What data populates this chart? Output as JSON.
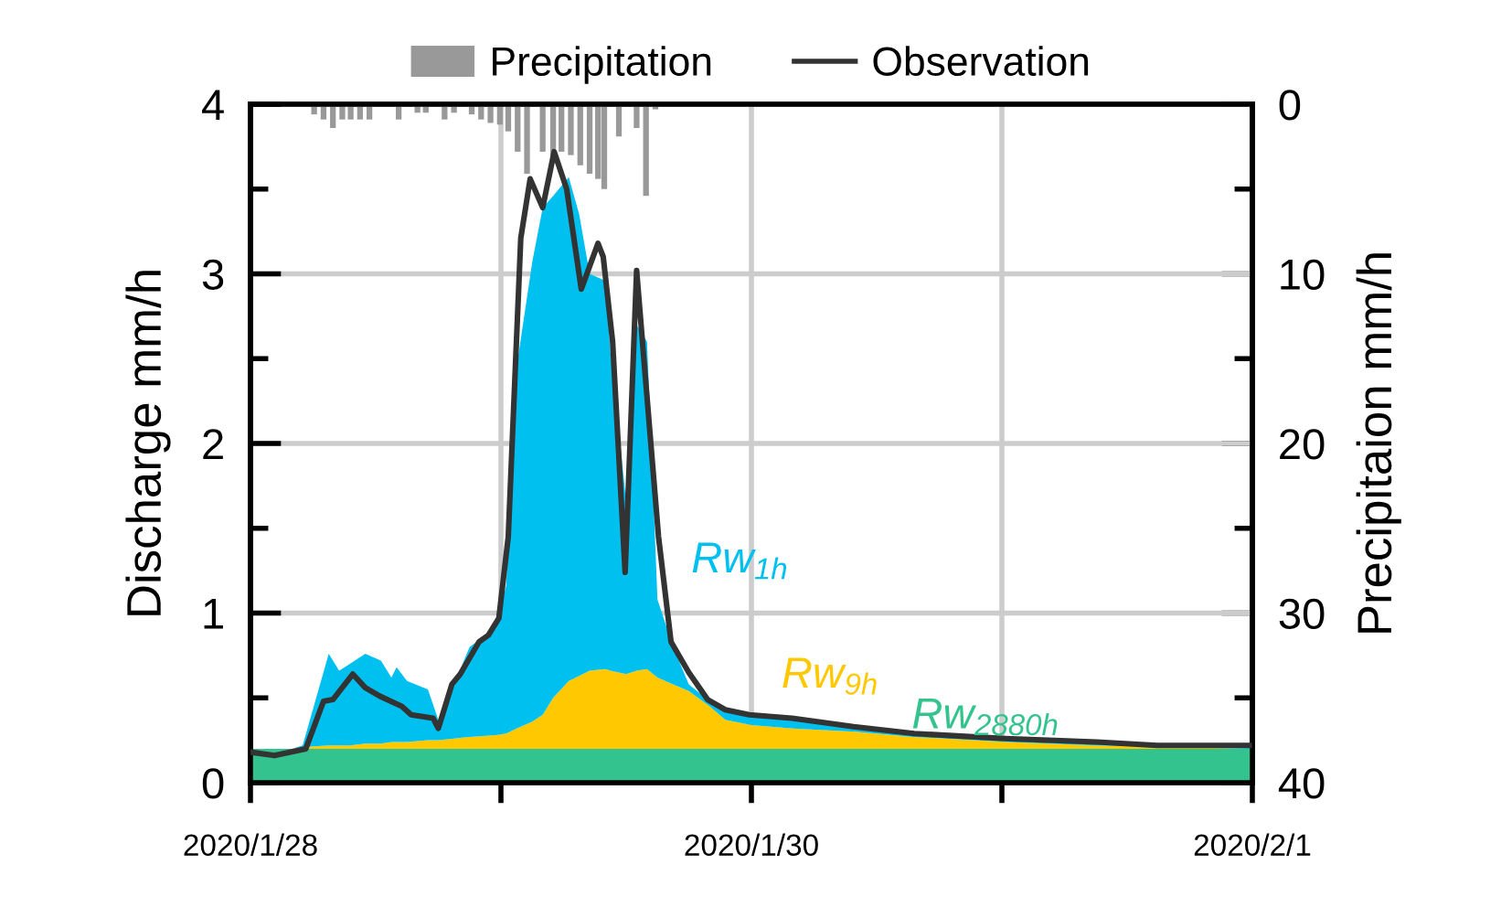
{
  "chart_data": {
    "type": "area",
    "stacked": true,
    "ylabel": "Discharge mm/h",
    "y2label": "Precipitaion mm/h",
    "xlim": [
      "2020-01-28",
      "2020-02-01"
    ],
    "xticks": [
      {
        "value": "2020-01-28",
        "label": "2020/1/28"
      },
      {
        "value": "2020-01-29",
        "label": null
      },
      {
        "value": "2020-01-30",
        "label": "2020/1/30"
      },
      {
        "value": "2020-01-31",
        "label": null
      },
      {
        "value": "2020-02-01",
        "label": "2020/2/1"
      }
    ],
    "ylim": [
      0,
      4
    ],
    "yticks": [
      0,
      1,
      2,
      3,
      4
    ],
    "y2lim": [
      40,
      0
    ],
    "y2ticks": [
      0,
      10,
      20,
      30,
      40
    ],
    "grid": true,
    "legend": "top",
    "x": [
      "2020-01-28T00:00",
      "2020-01-28T04:00",
      "2020-01-28T05:00",
      "2020-01-28T07:30",
      "2020-01-28T08:30",
      "2020-01-28T09:30",
      "2020-01-28T11:00",
      "2020-01-28T12:30",
      "2020-01-28T13:30",
      "2020-01-28T14:00",
      "2020-01-28T15:00",
      "2020-01-28T17:00",
      "2020-01-28T18:00",
      "2020-01-28T19:30",
      "2020-01-28T21:00",
      "2020-01-28T23:30",
      "2020-01-29T00:30",
      "2020-01-29T01:30",
      "2020-01-29T03:00",
      "2020-01-29T04:00",
      "2020-01-29T05:00",
      "2020-01-29T06:30",
      "2020-01-29T07:30",
      "2020-01-29T08:30",
      "2020-01-29T10:00",
      "2020-01-29T10:30",
      "2020-01-29T12:00",
      "2020-01-29T13:00",
      "2020-01-29T14:00",
      "2020-01-29T15:00",
      "2020-01-29T16:30",
      "2020-01-29T18:00",
      "2020-01-29T20:00",
      "2020-01-29T21:30",
      "2020-01-30T00:00",
      "2020-01-30T04:00",
      "2020-01-30T10:00",
      "2020-01-30T15:30",
      "2020-01-31T00:30",
      "2020-01-31T09:00",
      "2020-02-01T00:00"
    ],
    "series": [
      {
        "name": "Rw$_{2880h}$",
        "color": "#33c38f",
        "values": [
          0.2,
          0.2,
          0.2,
          0.2,
          0.2,
          0.2,
          0.2,
          0.2,
          0.2,
          0.2,
          0.2,
          0.2,
          0.2,
          0.2,
          0.2,
          0.2,
          0.2,
          0.2,
          0.2,
          0.2,
          0.2,
          0.2,
          0.2,
          0.2,
          0.2,
          0.2,
          0.2,
          0.2,
          0.2,
          0.2,
          0.2,
          0.2,
          0.2,
          0.2,
          0.2,
          0.2,
          0.2,
          0.2,
          0.2,
          0.2,
          0.2
        ]
      },
      {
        "name": "Rw$_{9h}$",
        "color": "#ffc800",
        "values": [
          0,
          0,
          0.01,
          0.02,
          0.02,
          0.02,
          0.03,
          0.03,
          0.04,
          0.04,
          0.04,
          0.05,
          0.05,
          0.06,
          0.07,
          0.08,
          0.09,
          0.12,
          0.16,
          0.2,
          0.3,
          0.4,
          0.43,
          0.46,
          0.47,
          0.46,
          0.44,
          0.46,
          0.47,
          0.42,
          0.38,
          0.34,
          0.25,
          0.17,
          0.14,
          0.12,
          0.1,
          0.07,
          0.04,
          0.02,
          0
        ]
      },
      {
        "name": "Rw$_{1h}$",
        "color": "#00c0f0",
        "values": [
          0,
          0,
          0.01,
          0.54,
          0.44,
          0.48,
          0.53,
          0.49,
          0.38,
          0.44,
          0.36,
          0.3,
          0.12,
          0.32,
          0.53,
          0.63,
          0.87,
          2.13,
          2.71,
          2.99,
          2.96,
          2.97,
          2.72,
          2.34,
          2.29,
          1.87,
          1.02,
          2.04,
          1.93,
          0.46,
          0.22,
          0.04,
          0.03,
          0.06,
          0.06,
          0.05,
          0.02,
          0.01,
          0.01,
          0.01,
          0.01
        ]
      },
      {
        "name": "Observation",
        "type": "line",
        "color": "#333333",
        "line_style": "solid",
        "marker": "none",
        "x": [
          "2020-01-28T00:00",
          "2020-01-28T02:18",
          "2020-01-28T05:18",
          "2020-01-28T07:00",
          "2020-01-28T07:54",
          "2020-01-28T09:48",
          "2020-01-28T11:00",
          "2020-01-28T12:24",
          "2020-01-28T14:30",
          "2020-01-28T15:24",
          "2020-01-28T17:30",
          "2020-01-28T18:00",
          "2020-01-28T19:18",
          "2020-01-28T20:06",
          "2020-01-28T21:54",
          "2020-01-28T22:48",
          "2020-01-28T23:48",
          "2020-01-29T00:42",
          "2020-01-29T01:54",
          "2020-01-29T02:48",
          "2020-01-29T04:00",
          "2020-01-29T05:06",
          "2020-01-29T06:18",
          "2020-01-29T07:42",
          "2020-01-29T09:18",
          "2020-01-29T09:48",
          "2020-01-29T10:42",
          "2020-01-29T11:54",
          "2020-01-29T13:00",
          "2020-01-29T13:48",
          "2020-01-29T15:06",
          "2020-01-29T16:18",
          "2020-01-29T18:00",
          "2020-01-29T19:48",
          "2020-01-29T21:30",
          "2020-01-29T23:48",
          "2020-01-30T03:54",
          "2020-01-30T09:48",
          "2020-01-30T15:36",
          "2020-01-31T00:24",
          "2020-01-31T09:06",
          "2020-01-31T14:54",
          "2020-01-31T23:42"
        ],
        "values": [
          0.18,
          0.16,
          0.2,
          0.48,
          0.49,
          0.64,
          0.56,
          0.51,
          0.45,
          0.4,
          0.38,
          0.32,
          0.58,
          0.64,
          0.83,
          0.87,
          0.97,
          1.45,
          3.21,
          3.56,
          3.39,
          3.72,
          3.5,
          2.91,
          3.18,
          3.1,
          2.6,
          1.24,
          3.02,
          2.42,
          1.45,
          0.83,
          0.65,
          0.49,
          0.43,
          0.4,
          0.38,
          0.33,
          0.29,
          0.26,
          0.24,
          0.22,
          0.22
        ]
      },
      {
        "name": "Precipitation",
        "type": "bar",
        "axis": "y2",
        "color": "#999999",
        "x": [
          "2020-01-28T06:06",
          "2020-01-28T07:00",
          "2020-01-28T07:54",
          "2020-01-28T08:48",
          "2020-01-28T09:36",
          "2020-01-28T10:30",
          "2020-01-28T11:24",
          "2020-01-28T14:12",
          "2020-01-28T16:00",
          "2020-01-28T16:48",
          "2020-01-28T18:36",
          "2020-01-28T19:30",
          "2020-01-28T21:12",
          "2020-01-28T22:06",
          "2020-01-28T23:00",
          "2020-01-28T23:54",
          "2020-01-29T00:42",
          "2020-01-29T01:36",
          "2020-01-29T02:30",
          "2020-01-29T04:00",
          "2020-01-29T05:00",
          "2020-01-29T05:48",
          "2020-01-29T06:42",
          "2020-01-29T07:36",
          "2020-01-29T08:30",
          "2020-01-29T09:18",
          "2020-01-29T09:54",
          "2020-01-29T11:18",
          "2020-01-29T13:00",
          "2020-01-29T13:54",
          "2020-01-29T14:48"
        ],
        "values": [
          0.6,
          0.9,
          1.4,
          0.9,
          0.9,
          0.9,
          0.9,
          0.9,
          0.5,
          0.5,
          0.9,
          0.5,
          0.6,
          0.9,
          1.1,
          1.2,
          1.6,
          2.8,
          4.1,
          2.8,
          3.4,
          2.8,
          3.0,
          3.6,
          4.1,
          4.4,
          5.0,
          1.9,
          1.4,
          5.4,
          0.3
        ]
      }
    ]
  }
}
